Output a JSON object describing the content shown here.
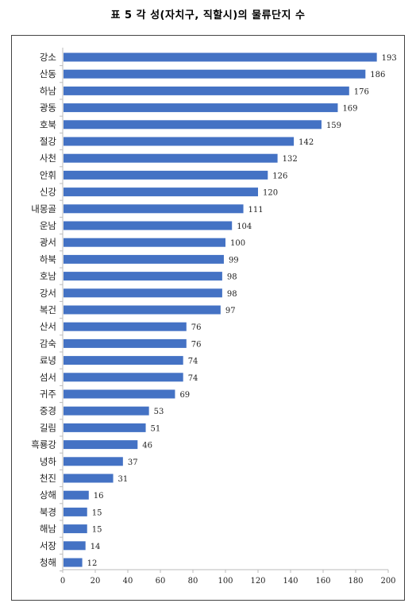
{
  "title": "표 5 각 성(자치구, 직할시)의 물류단지 수",
  "chart_data": {
    "type": "bar",
    "orientation": "horizontal",
    "categories": [
      "강소",
      "산동",
      "하남",
      "광동",
      "호북",
      "절강",
      "사천",
      "안휘",
      "신강",
      "내몽골",
      "운남",
      "광서",
      "하북",
      "호남",
      "강서",
      "복건",
      "산서",
      "감숙",
      "료녕",
      "섬서",
      "귀주",
      "중경",
      "길림",
      "흑룡강",
      "녕하",
      "천진",
      "상해",
      "북경",
      "해남",
      "서장",
      "청해"
    ],
    "values": [
      193,
      186,
      176,
      169,
      159,
      142,
      132,
      126,
      120,
      111,
      104,
      100,
      99,
      98,
      98,
      97,
      76,
      76,
      74,
      74,
      69,
      53,
      51,
      46,
      37,
      31,
      16,
      15,
      15,
      14,
      12
    ],
    "xlim": [
      0,
      200
    ],
    "xticks": [
      0,
      20,
      40,
      60,
      80,
      100,
      120,
      140,
      160,
      180,
      200
    ],
    "bar_color": "#4472C4",
    "data_labels": true,
    "legend": "none",
    "grid": false
  }
}
